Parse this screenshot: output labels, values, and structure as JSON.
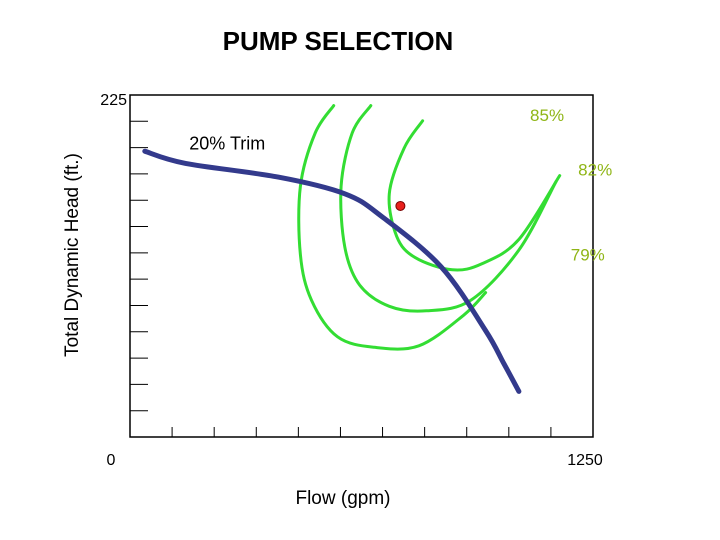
{
  "chart_data": {
    "type": "line",
    "title": "PUMP SELECTION",
    "xlabel": "Flow  (gpm)",
    "ylabel": "Total Dynamic Head  (ft.)",
    "xlim": [
      0,
      1250
    ],
    "ylim": [
      0,
      225
    ],
    "x_tick_labels": [
      "0",
      "1250"
    ],
    "y_tick_labels": [
      "225"
    ],
    "grid": false,
    "colors": {
      "pump_curve": "#333a8c",
      "efficiency_curves": "#33dd33",
      "efficiency_labels": "#8fb516",
      "operating_point": "#e8201c",
      "frame": "#000000"
    },
    "series": [
      {
        "kind": "pump-curve",
        "x": [
          40,
          150,
          400,
          580,
          680,
          840,
          960,
          1010,
          1050
        ],
        "y": [
          188,
          180,
          171,
          160,
          145,
          112,
          70,
          48,
          30
        ]
      },
      {
        "kind": "efficiency-contour",
        "x": [
          550,
          500,
          460,
          460,
          490,
          560,
          660,
          780,
          900,
          960
        ],
        "y": [
          218,
          200,
          165,
          120,
          90,
          66,
          59,
          60,
          80,
          95
        ]
      },
      {
        "kind": "efficiency-contour",
        "x": [
          650,
          600,
          570,
          580,
          620,
          700,
          800,
          920,
          1050,
          1150
        ],
        "y": [
          218,
          200,
          165,
          125,
          100,
          86,
          83,
          90,
          123,
          168
        ]
      },
      {
        "kind": "efficiency-contour",
        "x": [
          790,
          740,
          700,
          720,
          770,
          870,
          950,
          1050,
          1160
        ],
        "y": [
          208,
          190,
          160,
          132,
          118,
          110,
          114,
          130,
          172
        ]
      }
    ],
    "operating_point": {
      "x": 730,
      "y": 152
    },
    "annotations": [
      {
        "text": "20% Trim",
        "x": 160,
        "y": 189
      },
      {
        "text": "85%",
        "x": 1080,
        "y": 208
      },
      {
        "text": "82%",
        "x": 1210,
        "y": 172
      },
      {
        "text": "79%",
        "x": 1190,
        "y": 116
      }
    ]
  }
}
